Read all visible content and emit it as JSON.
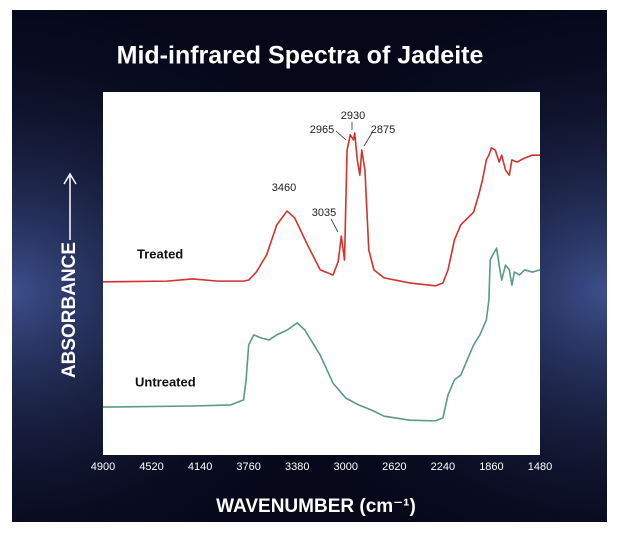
{
  "chart_data": {
    "type": "line",
    "title": "Mid-infrared Spectra of Jadeite",
    "x_label": "WAVENUMBER (cm⁻¹)",
    "y_label": "ABSORBANCE",
    "xlim": [
      4900,
      1480
    ],
    "xticks": [
      4900,
      4520,
      4140,
      3760,
      3380,
      3000,
      2620,
      2240,
      1860,
      1480
    ],
    "ylim": [
      0,
      100
    ],
    "peaks": [
      3460,
      3035,
      2965,
      2930,
      2875
    ],
    "series": [
      {
        "name": "Treated",
        "color": "#d3322e",
        "x": [
          4900,
          4400,
          4200,
          4000,
          3800,
          3760,
          3700,
          3620,
          3540,
          3460,
          3400,
          3300,
          3200,
          3100,
          3060,
          3035,
          3010,
          2990,
          2965,
          2940,
          2930,
          2910,
          2890,
          2875,
          2850,
          2820,
          2780,
          2700,
          2500,
          2300,
          2240,
          2200,
          2150,
          2100,
          2000,
          1960,
          1930,
          1900,
          1880,
          1860,
          1830,
          1800,
          1780,
          1750,
          1720,
          1700,
          1660,
          1600,
          1540,
          1480
        ],
        "values": [
          47.7,
          47.9,
          48.5,
          47.9,
          47.9,
          48.2,
          50.4,
          55.1,
          63.4,
          67.2,
          65.3,
          57.9,
          51.0,
          49.6,
          53.2,
          60.3,
          53.7,
          84.0,
          88.2,
          86.8,
          88.7,
          81.3,
          77.1,
          84.0,
          78.5,
          56.5,
          51.0,
          48.8,
          47.4,
          46.6,
          47.4,
          51.0,
          59.2,
          63.4,
          66.9,
          71.6,
          75.8,
          81.3,
          82.6,
          84.6,
          84.0,
          80.7,
          82.6,
          78.5,
          77.1,
          81.3,
          80.7,
          81.8,
          82.6,
          82.6
        ]
      },
      {
        "name": "Untreated",
        "color": "#5a9a86",
        "x": [
          4900,
          4200,
          3900,
          3800,
          3780,
          3760,
          3720,
          3660,
          3600,
          3540,
          3460,
          3380,
          3320,
          3200,
          3100,
          3000,
          2900,
          2800,
          2700,
          2500,
          2300,
          2240,
          2200,
          2150,
          2100,
          2050,
          2000,
          1950,
          1900,
          1880,
          1870,
          1850,
          1820,
          1800,
          1780,
          1750,
          1720,
          1700,
          1680,
          1640,
          1600,
          1540,
          1480
        ],
        "values": [
          13.2,
          13.5,
          13.8,
          15.2,
          20.7,
          30.3,
          33.1,
          32.2,
          31.7,
          33.1,
          34.4,
          36.4,
          34.4,
          27.5,
          19.8,
          15.7,
          13.8,
          12.4,
          10.7,
          9.6,
          9.4,
          10.2,
          16.5,
          20.7,
          22.0,
          26.2,
          30.3,
          33.1,
          37.2,
          42.7,
          53.7,
          55.1,
          57.0,
          52.3,
          48.2,
          52.3,
          51.0,
          46.8,
          50.4,
          49.6,
          51.0,
          50.4,
          51.0
        ]
      }
    ]
  }
}
